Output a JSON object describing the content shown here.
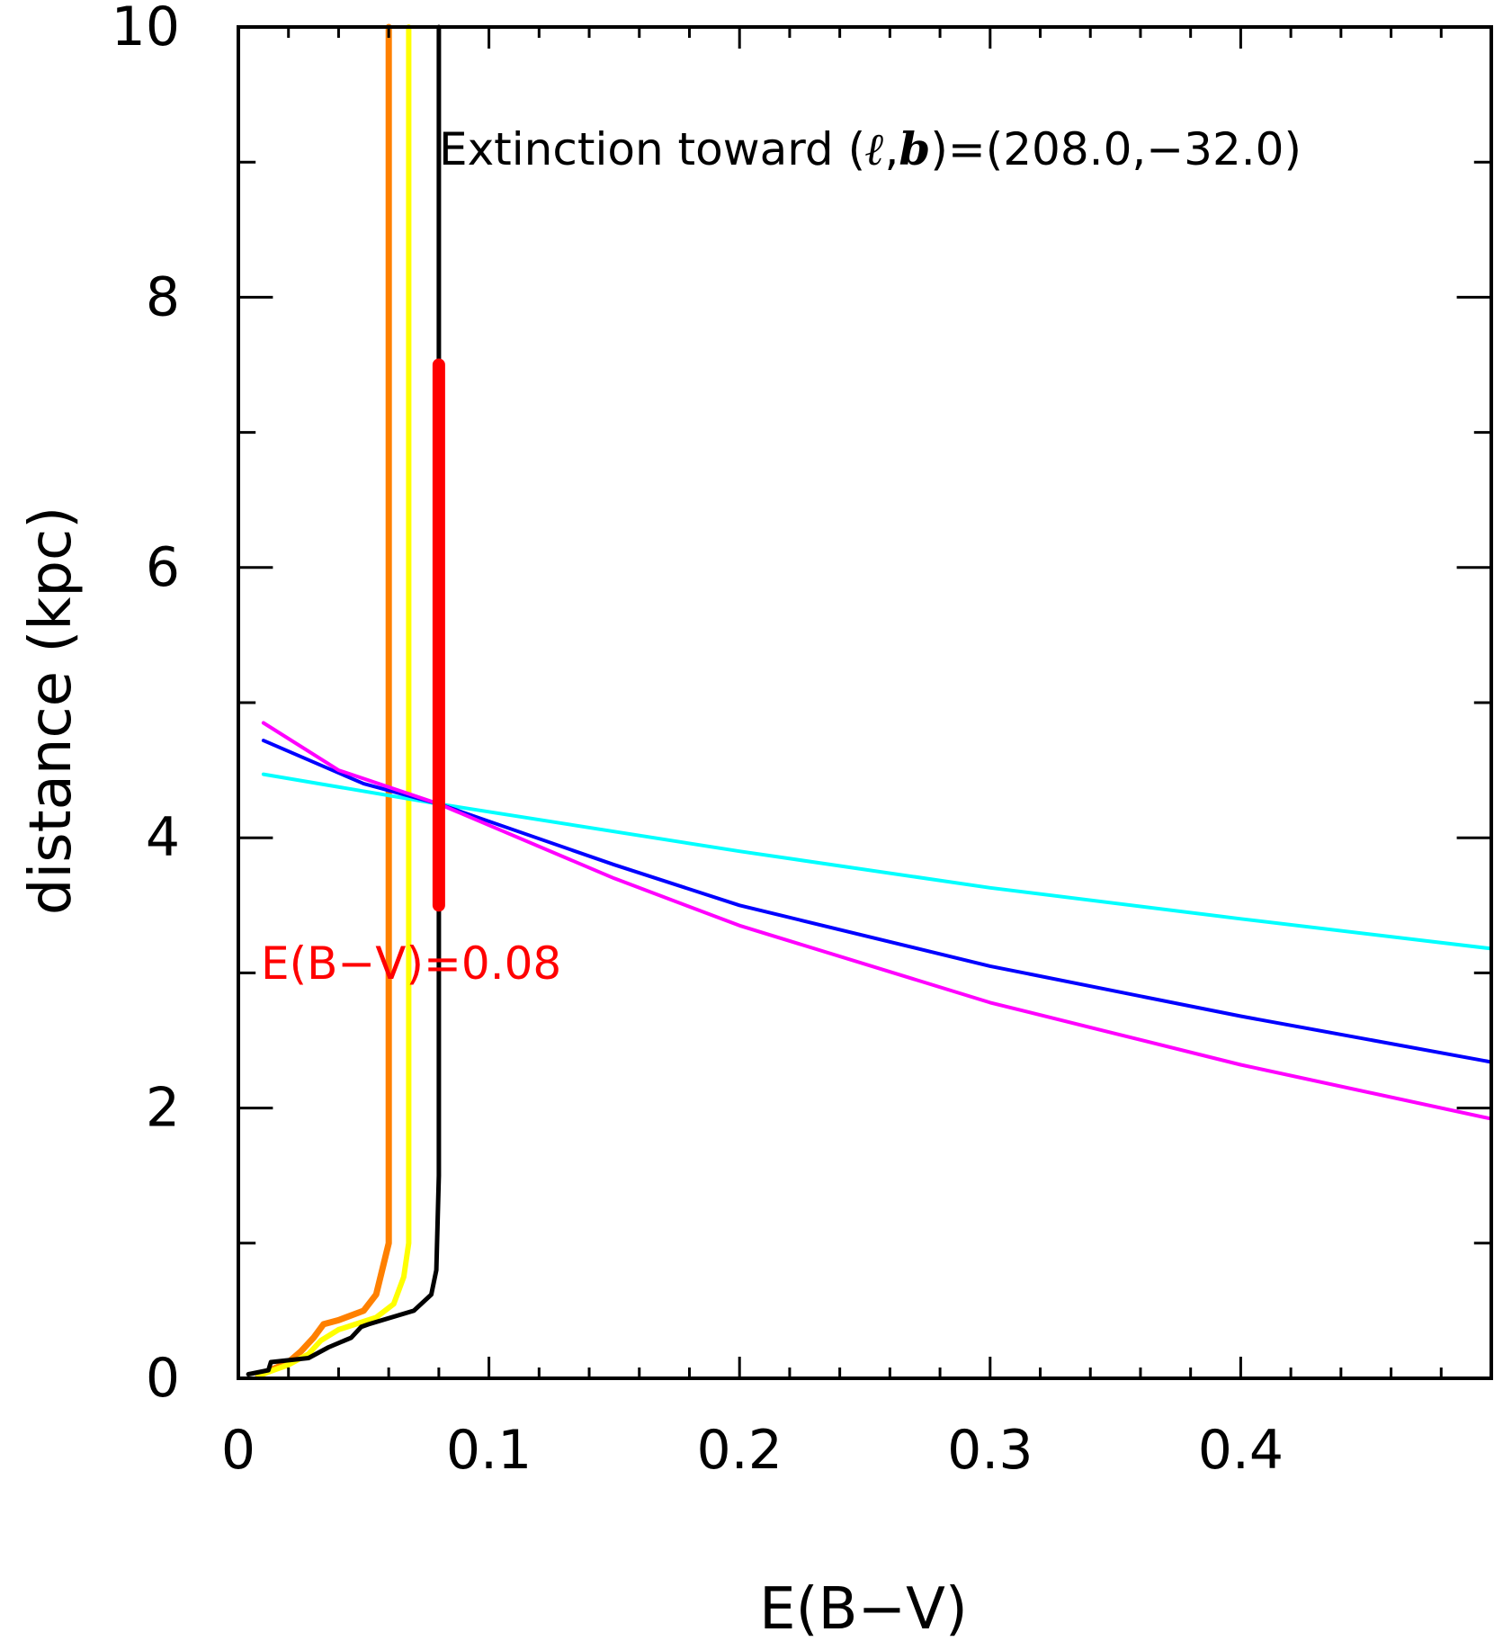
{
  "chart_data": {
    "type": "line",
    "title_prefix": "Extinction toward (",
    "title_l": "ℓ",
    "title_comma": ",",
    "title_b": "b",
    "title_suffix": ")=(208.0,−32.0)",
    "xlabel": "E(B−V)",
    "ylabel": "distance (kpc)",
    "xlim": [
      0,
      0.5
    ],
    "ylim": [
      0,
      10
    ],
    "x_ticks": [
      "0",
      "0.1",
      "0.2",
      "0.3",
      "0.4"
    ],
    "y_ticks": [
      "0",
      "2",
      "4",
      "6",
      "8",
      "10"
    ],
    "grid": false,
    "annotation": {
      "text": "E(B−V)=0.08",
      "color": "#ff0000"
    },
    "series": [
      {
        "color": "#ff8000",
        "x": [
          0.008,
          0.02,
          0.025,
          0.03,
          0.034,
          0.04,
          0.05,
          0.055,
          0.06,
          0.06
        ],
        "y": [
          0.02,
          0.12,
          0.2,
          0.3,
          0.4,
          0.43,
          0.5,
          0.62,
          1.0,
          10.0
        ]
      },
      {
        "color": "#ffff00",
        "x": [
          0.008,
          0.02,
          0.028,
          0.033,
          0.04,
          0.055,
          0.062,
          0.066,
          0.068,
          0.068
        ],
        "y": [
          0.02,
          0.1,
          0.18,
          0.28,
          0.36,
          0.45,
          0.55,
          0.75,
          1.0,
          10.0
        ]
      },
      {
        "color": "#000000",
        "x": [
          0.004,
          0.012,
          0.013,
          0.028,
          0.036,
          0.045,
          0.049,
          0.052,
          0.07,
          0.077,
          0.079,
          0.08,
          0.08
        ],
        "y": [
          0.03,
          0.06,
          0.12,
          0.15,
          0.23,
          0.3,
          0.38,
          0.4,
          0.5,
          0.62,
          0.8,
          1.5,
          10.0
        ]
      },
      {
        "color": "#00ffff",
        "x": [
          0.01,
          0.08,
          0.2,
          0.3,
          0.4,
          0.5
        ],
        "y": [
          4.47,
          4.25,
          3.9,
          3.63,
          3.4,
          3.18
        ]
      },
      {
        "color": "#0000ff",
        "x": [
          0.01,
          0.05,
          0.08,
          0.15,
          0.2,
          0.3,
          0.4,
          0.5
        ],
        "y": [
          4.72,
          4.4,
          4.25,
          3.8,
          3.5,
          3.05,
          2.68,
          2.34
        ]
      },
      {
        "color": "#ff00ff",
        "x": [
          0.01,
          0.04,
          0.08,
          0.15,
          0.2,
          0.3,
          0.4,
          0.5
        ],
        "y": [
          4.85,
          4.5,
          4.25,
          3.7,
          3.35,
          2.78,
          2.32,
          1.92
        ]
      }
    ],
    "highlight": {
      "color": "#ff0000",
      "x": 0.08,
      "y_range": [
        3.5,
        7.5
      ]
    }
  }
}
